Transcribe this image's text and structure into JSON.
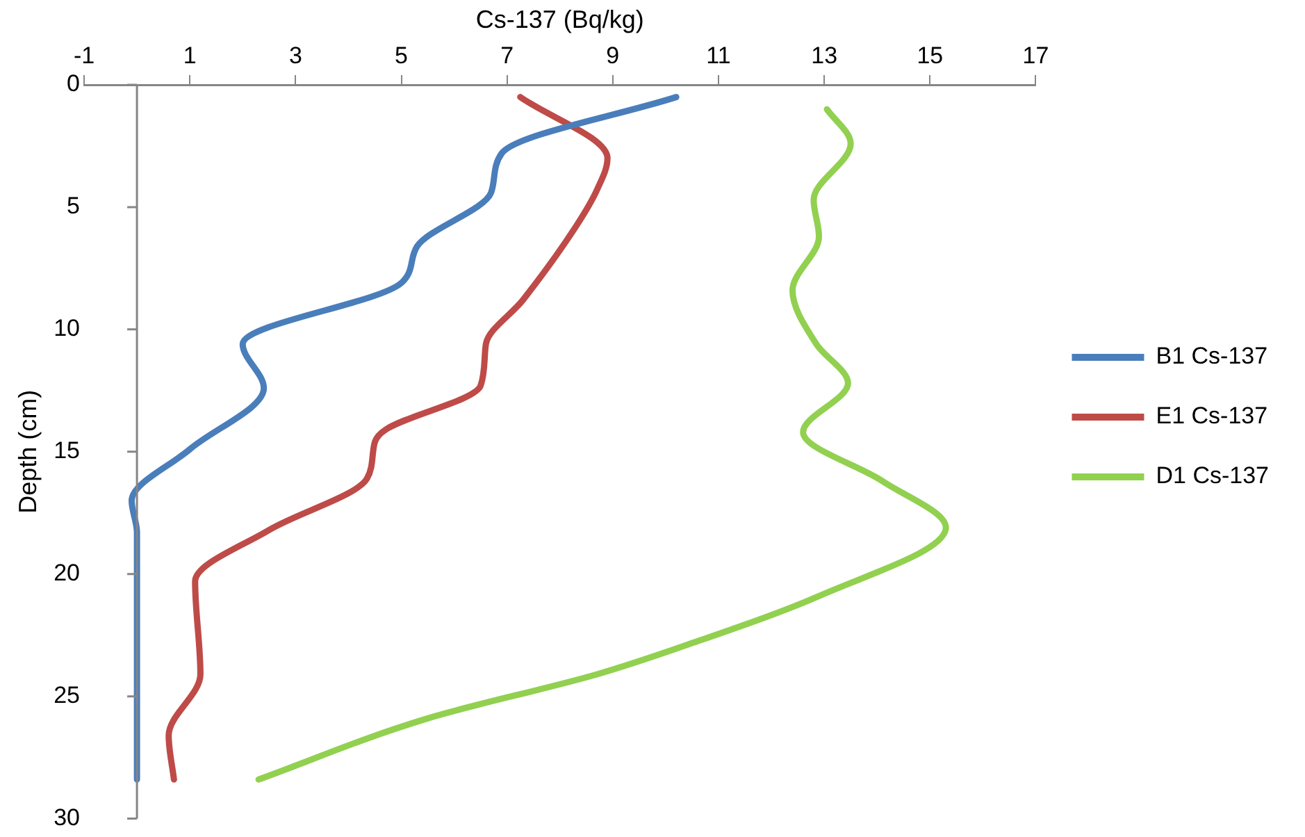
{
  "chart_data": {
    "type": "line",
    "xlabel": "Cs-137 (Bq/kg)",
    "ylabel": "Depth (cm)",
    "xlim": [
      -1,
      17
    ],
    "xticks": [
      -1,
      1,
      3,
      5,
      7,
      9,
      11,
      13,
      15,
      17
    ],
    "ylim": [
      30,
      0
    ],
    "yticks": [
      0,
      5,
      10,
      15,
      20,
      25,
      30
    ],
    "grid": false,
    "legend": "right",
    "marker": "none",
    "line_style": "solid",
    "series": [
      {
        "name": "B1 Cs-137",
        "color": "#4a7ebb",
        "x": [
          10.2,
          6.9,
          6.7,
          5.3,
          5.0,
          2.0,
          2.4,
          1.0,
          -0.1,
          0,
          0,
          0,
          0,
          0,
          0
        ],
        "values": [
          0.5,
          2.8,
          4.4,
          6.6,
          8.1,
          10.6,
          12.4,
          14.9,
          17.0,
          18.3,
          20.5,
          22.5,
          24.5,
          26.5,
          28.4
        ]
      },
      {
        "name": "E1 Cs-137",
        "color": "#be4b48",
        "x": [
          7.25,
          8.9,
          8.7,
          8.3,
          7.3,
          6.6,
          6.5,
          4.7,
          4.5,
          4.35,
          2.5,
          1.1,
          1.2,
          0.6,
          0.7
        ],
        "values": [
          0.5,
          3.0,
          4.3,
          5.8,
          8.8,
          10.6,
          12.3,
          14.1,
          14.6,
          16.1,
          18.2,
          20.3,
          24.1,
          26.6,
          28.4
        ]
      },
      {
        "name": "D1 Cs-137",
        "color": "#92d050",
        "x": [
          13.05,
          13.5,
          12.8,
          12.9,
          12.4,
          12.85,
          13.45,
          12.6,
          14.1,
          15.3,
          12.9,
          10.4,
          8.7,
          5.5,
          2.3
        ],
        "values": [
          1.0,
          2.4,
          4.7,
          6.2,
          8.4,
          10.6,
          12.2,
          14.2,
          16.2,
          18.1,
          20.9,
          22.9,
          24.1,
          25.9,
          28.4
        ]
      }
    ]
  }
}
